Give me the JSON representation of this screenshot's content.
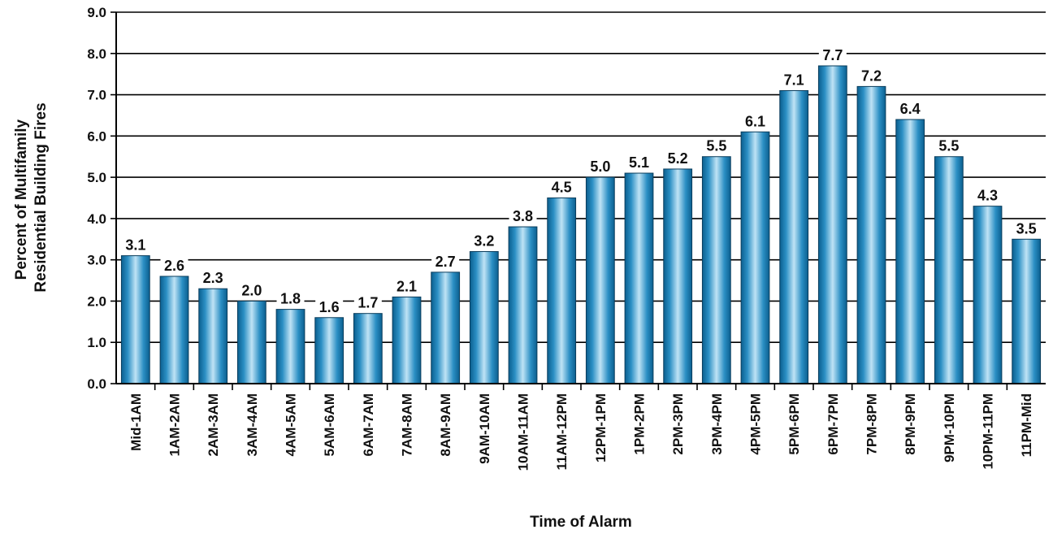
{
  "chart_data": {
    "type": "bar",
    "title": "",
    "xlabel": "Time of Alarm",
    "ylabel_lines": [
      "Percent of Multifamily",
      "Residential Building Fires"
    ],
    "ylim": [
      0,
      9
    ],
    "yticks": [
      "0.0",
      "1.0",
      "2.0",
      "3.0",
      "4.0",
      "5.0",
      "6.0",
      "7.0",
      "8.0",
      "9.0"
    ],
    "grid": "horizontal",
    "categories": [
      "Mid-1AM",
      "1AM-2AM",
      "2AM-3AM",
      "3AM-4AM",
      "4AM-5AM",
      "5AM-6AM",
      "6AM-7AM",
      "7AM-8AM",
      "8AM-9AM",
      "9AM-10AM",
      "10AM-11AM",
      "11AM-12PM",
      "12PM-1PM",
      "1PM-2PM",
      "2PM-3PM",
      "3PM-4PM",
      "4PM-5PM",
      "5PM-6PM",
      "6PM-7PM",
      "7PM-8PM",
      "8PM-9PM",
      "9PM-10PM",
      "10PM-11PM",
      "11PM-Mid"
    ],
    "values": [
      3.1,
      2.6,
      2.3,
      2.0,
      1.8,
      1.6,
      1.7,
      2.1,
      2.7,
      3.2,
      3.8,
      4.5,
      5.0,
      5.1,
      5.2,
      5.5,
      6.1,
      7.1,
      7.7,
      7.2,
      6.4,
      5.5,
      4.3,
      3.5
    ],
    "value_labels": [
      "3.1",
      "2.6",
      "2.3",
      "2.0",
      "1.8",
      "1.6",
      "1.7",
      "2.1",
      "2.7",
      "3.2",
      "3.8",
      "4.5",
      "5.0",
      "5.1",
      "5.2",
      "5.5",
      "6.1",
      "7.1",
      "7.7",
      "7.2",
      "6.4",
      "5.5",
      "4.3",
      "3.5"
    ],
    "colors": {
      "bar_dark": "#0b5f8f",
      "bar_mid": "#2b8fc4",
      "bar_light": "#bfe3f5",
      "axis": "#000000"
    }
  }
}
